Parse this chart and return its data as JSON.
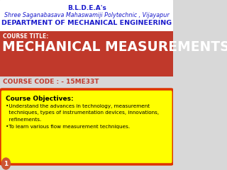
{
  "bg_color": "#d8d8d8",
  "header_bg": "#ffffff",
  "line1": "B.L.D.E.A's",
  "line2": "Shree Saganabasava Mahaswamiji Polytechnic , Vijayapur",
  "line3": "DEPARTMENT OF MECHANICAL ENGINEERING",
  "course_title_label": "COURSE TITLE:",
  "course_title": "MECHANICAL MEASUREMENTS",
  "orange_bg": "#c0392b",
  "course_code_label": "COURSE CODE : - 15ME33T",
  "course_code_color": "#c0392b",
  "yellow_box_bg": "#ffff00",
  "yellow_box_border": "#dd3300",
  "objectives_title": "Course Objectives:",
  "bullet1_line1": "•Understand the advances in technology, measurement",
  "bullet1_line2": "  techniques, types of instrumentation devices, innovations,",
  "bullet1_line3": "  refinements.",
  "bullet2": "•To learn various flow measurement techniques.",
  "slide_num": "1",
  "text_dark": "#000000",
  "text_white": "#ffffff",
  "text_blue": "#1a1acc",
  "text_orange": "#c0392b",
  "header_line1_size": 6.5,
  "header_line2_size": 5.8,
  "header_line3_size": 6.8,
  "course_label_size": 5.5,
  "course_title_size": 13.5,
  "course_code_size": 6.5,
  "obj_title_size": 6.5,
  "bullet_size": 5.2
}
